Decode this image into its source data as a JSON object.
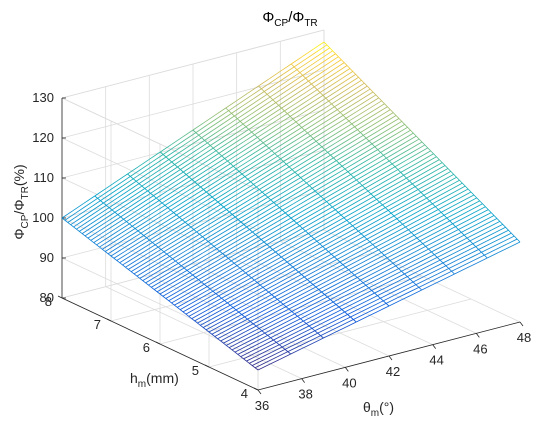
{
  "chart_data": {
    "type": "surface",
    "title": {
      "base": "Φ",
      "sub1": "CP",
      "sep": "/Φ",
      "sub2": "TR"
    },
    "xlabel": {
      "base": "θ",
      "sub": "m",
      "rest": "(°)"
    },
    "ylabel": {
      "base": "h",
      "sub": "m",
      "rest": "(mm)"
    },
    "zlabel": {
      "base": "Φ",
      "sub1": "CP",
      "sep": "/Φ",
      "sub2": "TR",
      "rest": "(%)"
    },
    "x_range": [
      36,
      48
    ],
    "y_range": [
      4,
      8
    ],
    "z_range": [
      80,
      130
    ],
    "x_ticks": [
      36,
      38,
      40,
      42,
      44,
      46,
      48
    ],
    "y_ticks": [
      4,
      5,
      6,
      7,
      8
    ],
    "z_ticks": [
      80,
      90,
      100,
      110,
      120,
      130
    ],
    "corner_values": [
      {
        "x": 36,
        "y": 4,
        "z": 85
      },
      {
        "x": 48,
        "y": 4,
        "z": 100
      },
      {
        "x": 36,
        "y": 8,
        "z": 100
      },
      {
        "x": 48,
        "y": 8,
        "z": 127
      }
    ],
    "colormap": "parula",
    "grid": true
  }
}
